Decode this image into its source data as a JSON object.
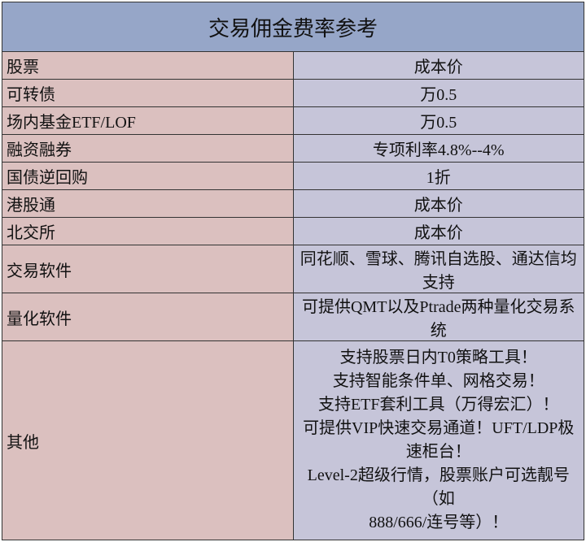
{
  "title": "交易佣金费率参考",
  "rows": [
    {
      "label": "股票",
      "value": "成本价"
    },
    {
      "label": "可转债",
      "value": "万0.5"
    },
    {
      "label": "场内基金ETF/LOF",
      "value": "万0.5"
    },
    {
      "label": "融资融券",
      "value": "专项利率4.8%--4%"
    },
    {
      "label": "国债逆回购",
      "value": "1折"
    },
    {
      "label": "港股通",
      "value": "成本价"
    },
    {
      "label": "北交所",
      "value": "成本价"
    },
    {
      "label": "交易软件",
      "value": "同花顺、雪球、腾讯自选股、通达信均支持"
    },
    {
      "label": "量化软件",
      "value": "可提供QMT以及Ptrade两种量化交易系统"
    }
  ],
  "other": {
    "label": "其他",
    "lines": [
      "支持股票日内T0策略工具！",
      "支持智能条件单、网格交易！",
      "支持ETF套利工具（万得宏汇）！",
      "可提供VIP快速交易通道！UFT/LDP极速柜台！",
      "Level-2超级行情，股票账户可选靓号（如",
      "888/666/连号等）！"
    ]
  },
  "colors": {
    "header": "#96a6c8",
    "label_column": "#dbc0bf",
    "value_column": "#c6c5d9"
  }
}
